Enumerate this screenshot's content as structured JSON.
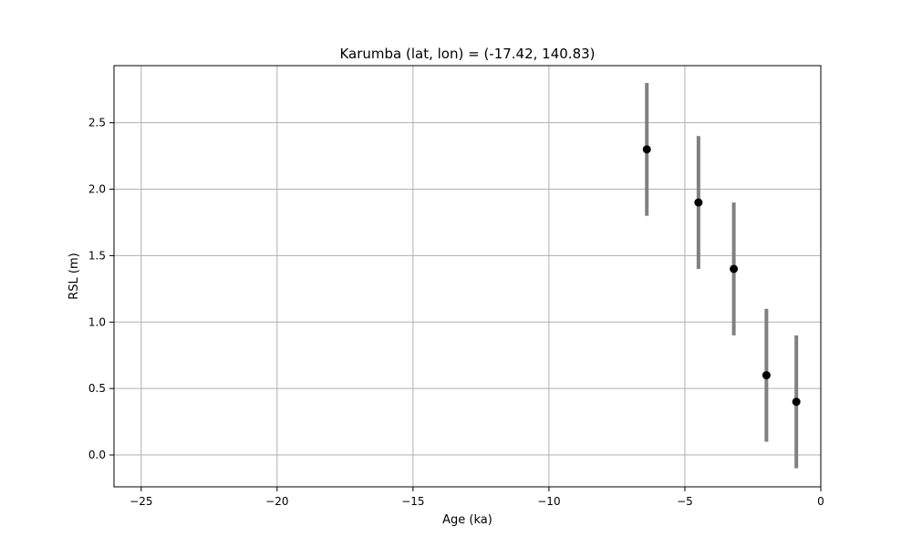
{
  "chart_data": {
    "type": "scatter",
    "title": "Karumba (lat, lon) = (-17.42, 140.83)",
    "xlabel": "Age (ka)",
    "ylabel": "RSL (m)",
    "xlim": [
      -26,
      0
    ],
    "ylim": [
      -0.24,
      2.93
    ],
    "x_ticks": [
      -25,
      -20,
      -15,
      -10,
      -5,
      0
    ],
    "x_tick_labels": [
      "−25",
      "−20",
      "−15",
      "−10",
      "−5",
      "0"
    ],
    "y_ticks": [
      0.0,
      0.5,
      1.0,
      1.5,
      2.0,
      2.5
    ],
    "y_tick_labels": [
      "0.0",
      "0.5",
      "1.0",
      "1.5",
      "2.0",
      "2.5"
    ],
    "grid": true,
    "points": [
      {
        "x": -6.4,
        "y": 2.3,
        "err": 0.5
      },
      {
        "x": -4.5,
        "y": 1.9,
        "err": 0.5
      },
      {
        "x": -3.2,
        "y": 1.4,
        "err": 0.5
      },
      {
        "x": -2.0,
        "y": 0.6,
        "err": 0.5
      },
      {
        "x": -0.9,
        "y": 0.4,
        "err": 0.5
      }
    ],
    "colors": {
      "marker": "#000000",
      "errorbar": "#808080",
      "grid": "#b0b0b0",
      "axes": "#000000"
    }
  }
}
